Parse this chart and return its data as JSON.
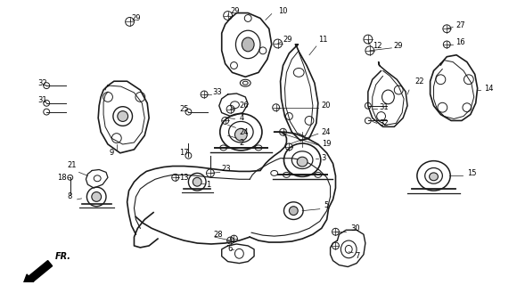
{
  "bg_color": "#ffffff",
  "fig_width": 5.8,
  "fig_height": 3.2,
  "dpi": 100,
  "line_color": "#1a1a1a",
  "text_color": "#000000",
  "label_fontsize": 6.0,
  "fr_label": "FR."
}
